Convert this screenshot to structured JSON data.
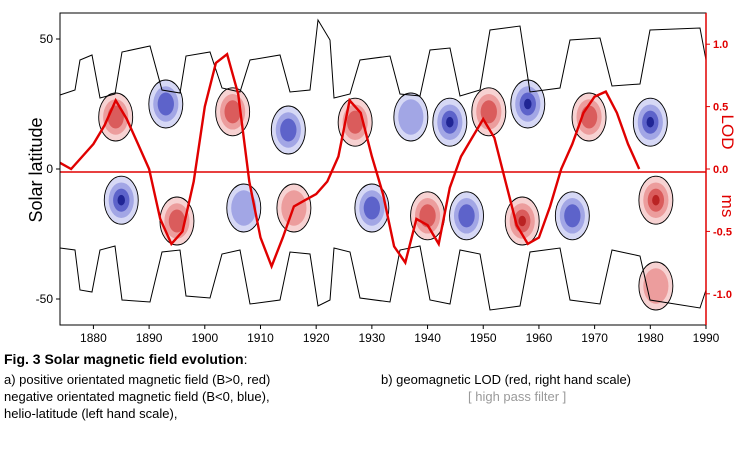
{
  "chart_data": {
    "type": "contour+line",
    "left_axis": {
      "label": "Solar latitude",
      "ticks": [
        "50",
        "0",
        "-50"
      ],
      "range": [
        -60,
        60
      ]
    },
    "right_axis": {
      "label_top": "LOD",
      "label_bottom": "ms",
      "ticks": [
        "1.0",
        "0.5",
        "0.0",
        "-0.5",
        "-1.0"
      ],
      "range": [
        -1.25,
        1.25
      ]
    },
    "x_axis": {
      "ticks": [
        "1880",
        "1890",
        "1900",
        "1910",
        "1920",
        "1930",
        "1940",
        "1950",
        "1960",
        "1970",
        "1980",
        "1990"
      ],
      "range": [
        1874,
        1990
      ]
    },
    "colors": {
      "positive": "#e04040",
      "negative": "#3030c0",
      "lod": "#e00000",
      "contour": "#000000"
    },
    "lod_series": {
      "name": "geomagnetic LOD",
      "x": [
        1874,
        1876,
        1878,
        1880,
        1882,
        1884,
        1886,
        1888,
        1890,
        1892,
        1894,
        1896,
        1898,
        1900,
        1902,
        1904,
        1906,
        1908,
        1910,
        1912,
        1914,
        1916,
        1918,
        1920,
        1922,
        1924,
        1926,
        1928,
        1930,
        1932,
        1934,
        1936,
        1938,
        1940,
        1942,
        1944,
        1946,
        1948,
        1950,
        1952,
        1954,
        1956,
        1958,
        1960,
        1962,
        1964,
        1966,
        1968,
        1970,
        1972,
        1974,
        1976,
        1978
      ],
      "y": [
        0.05,
        0.0,
        0.1,
        0.2,
        0.35,
        0.55,
        0.4,
        0.2,
        0.0,
        -0.4,
        -0.6,
        -0.5,
        -0.1,
        0.5,
        0.85,
        0.92,
        0.6,
        -0.1,
        -0.55,
        -0.78,
        -0.55,
        -0.3,
        -0.25,
        -0.2,
        -0.1,
        0.1,
        0.55,
        0.45,
        0.1,
        -0.2,
        -0.62,
        -0.75,
        -0.4,
        -0.45,
        -0.6,
        -0.15,
        0.1,
        0.25,
        0.4,
        0.25,
        -0.1,
        -0.45,
        -0.6,
        -0.55,
        -0.3,
        0.0,
        0.2,
        0.45,
        0.58,
        0.62,
        0.45,
        0.2,
        0.0
      ]
    },
    "regions": [
      {
        "x": 1884,
        "lat": 20,
        "sign": "+",
        "level": 2
      },
      {
        "x": 1885,
        "lat": -12,
        "sign": "-",
        "level": 3
      },
      {
        "x": 1893,
        "lat": 25,
        "sign": "-",
        "level": 2
      },
      {
        "x": 1895,
        "lat": -20,
        "sign": "+",
        "level": 2
      },
      {
        "x": 1905,
        "lat": 22,
        "sign": "+",
        "level": 2
      },
      {
        "x": 1907,
        "lat": -15,
        "sign": "-",
        "level": 1
      },
      {
        "x": 1915,
        "lat": 15,
        "sign": "-",
        "level": 2
      },
      {
        "x": 1916,
        "lat": -15,
        "sign": "+",
        "level": 1
      },
      {
        "x": 1927,
        "lat": 18,
        "sign": "+",
        "level": 2
      },
      {
        "x": 1930,
        "lat": -15,
        "sign": "-",
        "level": 2
      },
      {
        "x": 1937,
        "lat": 20,
        "sign": "-",
        "level": 1
      },
      {
        "x": 1940,
        "lat": -18,
        "sign": "+",
        "level": 2
      },
      {
        "x": 1944,
        "lat": 18,
        "sign": "-",
        "level": 3
      },
      {
        "x": 1947,
        "lat": -18,
        "sign": "-",
        "level": 2
      },
      {
        "x": 1951,
        "lat": 22,
        "sign": "+",
        "level": 2
      },
      {
        "x": 1957,
        "lat": -20,
        "sign": "+",
        "level": 3
      },
      {
        "x": 1958,
        "lat": 25,
        "sign": "-",
        "level": 3
      },
      {
        "x": 1966,
        "lat": -18,
        "sign": "-",
        "level": 2
      },
      {
        "x": 1969,
        "lat": 20,
        "sign": "+",
        "level": 2
      },
      {
        "x": 1980,
        "lat": 18,
        "sign": "-",
        "level": 3
      },
      {
        "x": 1981,
        "lat": -12,
        "sign": "+",
        "level": 3
      },
      {
        "x": 1981,
        "lat": -45,
        "sign": "+",
        "level": 1
      }
    ]
  },
  "caption": {
    "title_bold": "Fig. 3  Solar magnetic field  evolution",
    "title_rest": ":",
    "line_a": "a)  positive orientated magnetic field (B>0, red)",
    "line_b": "negative  orientated magnetic field (B<0, blue),",
    "line_c": "helio-latitude (left hand scale),",
    "line_d": "b) geomagnetic LOD (red, right hand scale)",
    "line_e": "[ high pass filter ]"
  }
}
